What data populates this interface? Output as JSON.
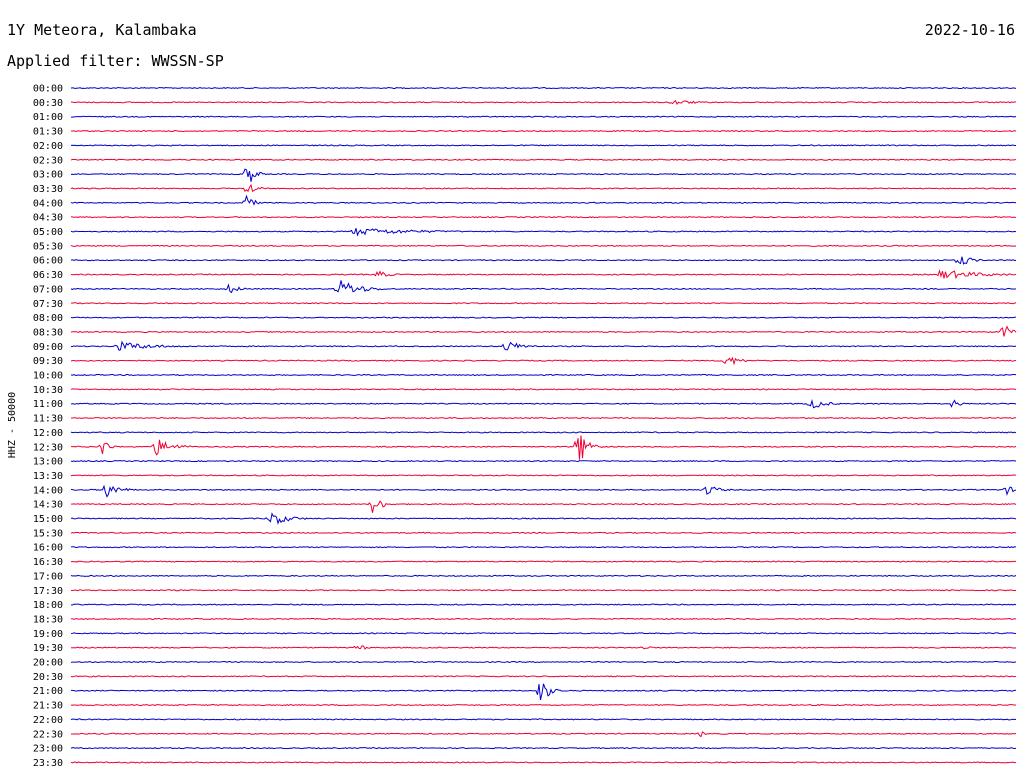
{
  "header": {
    "station": "1Y Meteora, Kalambaka",
    "filter": "Applied filter: WWSSN-SP",
    "date": "2022-10-16"
  },
  "colors": {
    "even_trace": "#0000cc",
    "odd_trace": "#ee0033",
    "text": "#000000"
  },
  "chart_data": {
    "type": "helicorder",
    "ylabel": "HHZ - 50000",
    "xlabel": "",
    "row_interval_minutes": 30,
    "noise_level": 0.5,
    "trace_labels": [
      "00:00",
      "00:30",
      "01:00",
      "01:30",
      "02:00",
      "02:30",
      "03:00",
      "03:30",
      "04:00",
      "04:30",
      "05:00",
      "05:30",
      "06:00",
      "06:30",
      "07:00",
      "07:30",
      "08:00",
      "08:30",
      "09:00",
      "09:30",
      "10:00",
      "10:30",
      "11:00",
      "11:30",
      "12:00",
      "12:30",
      "13:00",
      "13:30",
      "14:00",
      "14:30",
      "15:00",
      "15:30",
      "16:00",
      "16:30",
      "17:00",
      "17:30",
      "18:00",
      "18:30",
      "19:00",
      "19:30",
      "20:00",
      "20:30",
      "21:00",
      "21:30",
      "22:00",
      "22:30",
      "23:00",
      "23:30"
    ],
    "events": [
      {
        "trace": "00:30",
        "minute": 19.1,
        "duration_min": 1.6,
        "amplitude": 3
      },
      {
        "trace": "03:00",
        "minute": 5.6,
        "duration_min": 0.5,
        "amplitude": 14
      },
      {
        "trace": "03:30",
        "minute": 5.6,
        "duration_min": 0.6,
        "amplitude": 8
      },
      {
        "trace": "04:00",
        "minute": 5.6,
        "duration_min": 0.4,
        "amplitude": 11
      },
      {
        "trace": "05:00",
        "minute": 9.0,
        "duration_min": 4.5,
        "amplitude": 4
      },
      {
        "trace": "06:00",
        "minute": 28.2,
        "duration_min": 0.8,
        "amplitude": 7
      },
      {
        "trace": "06:30",
        "minute": 9.7,
        "duration_min": 1.0,
        "amplitude": 4
      },
      {
        "trace": "06:30",
        "minute": 27.6,
        "duration_min": 3.0,
        "amplitude": 5
      },
      {
        "trace": "07:00",
        "minute": 8.5,
        "duration_min": 1.5,
        "amplitude": 10
      },
      {
        "trace": "07:00",
        "minute": 5.0,
        "duration_min": 0.8,
        "amplitude": 5
      },
      {
        "trace": "08:30",
        "minute": 29.6,
        "duration_min": 0.6,
        "amplitude": 9
      },
      {
        "trace": "09:00",
        "minute": 1.5,
        "duration_min": 2.5,
        "amplitude": 5
      },
      {
        "trace": "09:00",
        "minute": 13.8,
        "duration_min": 1.2,
        "amplitude": 6
      },
      {
        "trace": "09:30",
        "minute": 20.8,
        "duration_min": 1.0,
        "amplitude": 6
      },
      {
        "trace": "11:00",
        "minute": 23.5,
        "duration_min": 1.0,
        "amplitude": 6
      },
      {
        "trace": "11:00",
        "minute": 28.0,
        "duration_min": 0.5,
        "amplitude": 5
      },
      {
        "trace": "12:30",
        "minute": 1.0,
        "duration_min": 0.5,
        "amplitude": 9
      },
      {
        "trace": "12:30",
        "minute": 2.7,
        "duration_min": 1.2,
        "amplitude": 9
      },
      {
        "trace": "12:30",
        "minute": 16.1,
        "duration_min": 0.8,
        "amplitude": 18
      },
      {
        "trace": "14:00",
        "minute": 1.1,
        "duration_min": 0.9,
        "amplitude": 9
      },
      {
        "trace": "14:00",
        "minute": 20.2,
        "duration_min": 0.8,
        "amplitude": 6
      },
      {
        "trace": "14:00",
        "minute": 29.7,
        "duration_min": 0.5,
        "amplitude": 5
      },
      {
        "trace": "14:30",
        "minute": 9.6,
        "duration_min": 0.6,
        "amplitude": 11
      },
      {
        "trace": "15:00",
        "minute": 6.3,
        "duration_min": 1.3,
        "amplitude": 8
      },
      {
        "trace": "19:30",
        "minute": 9.1,
        "duration_min": 0.6,
        "amplitude": 4
      },
      {
        "trace": "19:30",
        "minute": 18.2,
        "duration_min": 0.4,
        "amplitude": 3
      },
      {
        "trace": "21:00",
        "minute": 14.9,
        "duration_min": 0.7,
        "amplitude": 13
      },
      {
        "trace": "22:30",
        "minute": 20.0,
        "duration_min": 0.4,
        "amplitude": 3
      }
    ]
  }
}
